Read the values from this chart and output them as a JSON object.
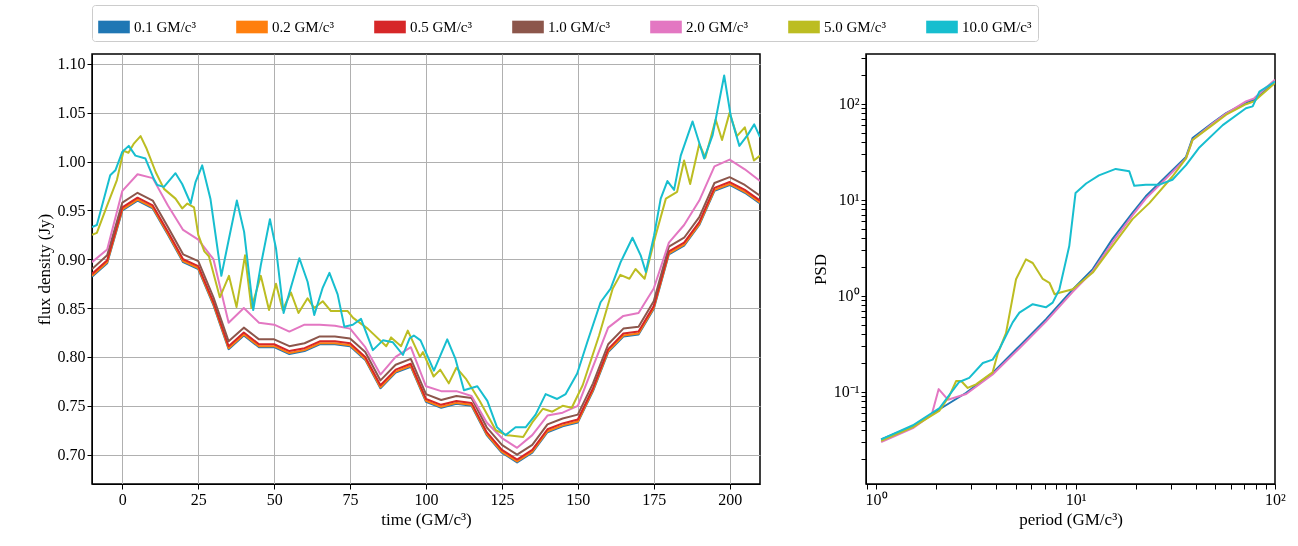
{
  "chart_data": [
    {
      "type": "line",
      "xlabel": "time (GM/c³)",
      "ylabel": "flux density (Jy)",
      "legend": "top",
      "grid": true,
      "xlim": [
        -10,
        210
      ],
      "xticks": [
        0,
        25,
        50,
        75,
        100,
        125,
        150,
        175,
        200
      ],
      "ylim": [
        0.67,
        1.11
      ],
      "yticks": [
        {
          "value": 0.7,
          "label": "0.70"
        },
        0.75,
        {
          "value": 0.8,
          "label": "0.80"
        },
        0.85,
        {
          "value": 0.9,
          "label": "0.90"
        },
        0.95,
        {
          "value": 1.0,
          "label": "1.00"
        },
        1.05,
        {
          "value": 1.1,
          "label": "1.10"
        }
      ],
      "x": [
        -10,
        -5,
        0,
        5,
        10,
        15,
        20,
        25,
        30,
        35,
        40,
        45,
        50,
        55,
        60,
        65,
        70,
        75,
        80,
        85,
        90,
        95,
        100,
        105,
        110,
        115,
        120,
        125,
        130,
        135,
        140,
        145,
        150,
        155,
        160,
        165,
        170,
        175,
        180,
        185,
        190,
        195,
        200,
        205,
        210
      ],
      "series": [
        {
          "name": "0.1 GM/c³",
          "color": "#1f77b4",
          "values": [
            0.882,
            0.896,
            0.95,
            0.96,
            0.952,
            0.925,
            0.897,
            0.89,
            0.853,
            0.808,
            0.822,
            0.81,
            0.81,
            0.803,
            0.806,
            0.813,
            0.813,
            0.811,
            0.797,
            0.768,
            0.784,
            0.79,
            0.754,
            0.748,
            0.752,
            0.75,
            0.72,
            0.702,
            0.692,
            0.702,
            0.723,
            0.729,
            0.733,
            0.765,
            0.805,
            0.821,
            0.823,
            0.849,
            0.905,
            0.914,
            0.935,
            0.97,
            0.976,
            0.968,
            0.957
          ]
        },
        {
          "name": "0.2 GM/c³",
          "color": "#ff7f0e",
          "values": [
            0.883,
            0.897,
            0.951,
            0.961,
            0.953,
            0.926,
            0.898,
            0.891,
            0.854,
            0.809,
            0.823,
            0.811,
            0.811,
            0.804,
            0.807,
            0.814,
            0.814,
            0.812,
            0.798,
            0.769,
            0.785,
            0.791,
            0.755,
            0.749,
            0.753,
            0.751,
            0.721,
            0.703,
            0.693,
            0.703,
            0.724,
            0.73,
            0.734,
            0.766,
            0.806,
            0.822,
            0.824,
            0.85,
            0.906,
            0.915,
            0.936,
            0.971,
            0.977,
            0.969,
            0.958
          ]
        },
        {
          "name": "0.5 GM/c³",
          "color": "#d62728",
          "values": [
            0.885,
            0.899,
            0.953,
            0.963,
            0.955,
            0.928,
            0.9,
            0.893,
            0.856,
            0.811,
            0.825,
            0.813,
            0.813,
            0.806,
            0.809,
            0.816,
            0.816,
            0.814,
            0.8,
            0.771,
            0.787,
            0.793,
            0.757,
            0.751,
            0.755,
            0.753,
            0.723,
            0.705,
            0.695,
            0.705,
            0.726,
            0.732,
            0.736,
            0.768,
            0.808,
            0.824,
            0.826,
            0.852,
            0.908,
            0.917,
            0.938,
            0.973,
            0.979,
            0.971,
            0.96
          ]
        },
        {
          "name": "1.0 GM/c³",
          "color": "#8c564b",
          "values": [
            0.89,
            0.904,
            0.958,
            0.968,
            0.96,
            0.933,
            0.905,
            0.898,
            0.861,
            0.816,
            0.83,
            0.818,
            0.818,
            0.811,
            0.814,
            0.821,
            0.821,
            0.819,
            0.805,
            0.776,
            0.792,
            0.798,
            0.762,
            0.756,
            0.76,
            0.758,
            0.728,
            0.71,
            0.7,
            0.71,
            0.731,
            0.737,
            0.741,
            0.773,
            0.813,
            0.829,
            0.831,
            0.857,
            0.913,
            0.922,
            0.943,
            0.978,
            0.984,
            0.976,
            0.965
          ]
        },
        {
          "name": "2.0 GM/c³",
          "color": "#e377c2",
          "values": [
            0.897,
            0.91,
            0.97,
            0.987,
            0.983,
            0.955,
            0.93,
            0.92,
            0.9,
            0.835,
            0.85,
            0.835,
            0.833,
            0.826,
            0.833,
            0.833,
            0.832,
            0.829,
            0.81,
            0.782,
            0.8,
            0.81,
            0.77,
            0.765,
            0.765,
            0.76,
            0.733,
            0.717,
            0.707,
            0.72,
            0.74,
            0.743,
            0.75,
            0.79,
            0.83,
            0.842,
            0.845,
            0.87,
            0.917,
            0.935,
            0.96,
            0.995,
            1.002,
            0.992,
            0.98
          ]
        },
        {
          "name": "5.0 GM/c³",
          "color": "#bcbd22",
          "x": [
            -10,
            -8.4,
            -5,
            -1.8,
            0.4,
            2,
            3.7,
            6,
            8,
            11,
            13.7,
            17.5,
            19.7,
            21.4,
            23.6,
            25,
            27,
            28.5,
            32.1,
            35.1,
            37.6,
            40.4,
            42.5,
            45.6,
            48.3,
            50.6,
            52.8,
            55.5,
            58,
            61,
            63.2,
            66,
            68.7,
            74.2,
            76,
            80.8,
            86.9,
            88.5,
            91.8,
            94,
            98,
            99,
            102.5,
            104.7,
            107.5,
            110,
            113.3,
            117.7,
            123,
            126.5,
            132,
            135,
            138.5,
            141.6,
            145,
            148,
            151.6,
            157,
            161.5,
            164,
            167,
            169,
            172,
            175.6,
            179,
            182.7,
            185,
            187,
            190,
            192,
            195.4,
            197.5,
            200,
            202.4,
            205,
            208,
            210
          ],
          "values": [
            0.925,
            0.927,
            0.955,
            0.981,
            1.011,
            1.009,
            1.018,
            1.026,
            1.013,
            0.989,
            0.972,
            0.962,
            0.952,
            0.957,
            0.953,
            0.925,
            0.908,
            0.903,
            0.861,
            0.883,
            0.851,
            0.904,
            0.85,
            0.883,
            0.848,
            0.875,
            0.848,
            0.866,
            0.845,
            0.86,
            0.85,
            0.857,
            0.847,
            0.847,
            0.84,
            0.829,
            0.811,
            0.82,
            0.811,
            0.827,
            0.8,
            0.805,
            0.78,
            0.787,
            0.773,
            0.789,
            0.777,
            0.755,
            0.725,
            0.72,
            0.718,
            0.733,
            0.747,
            0.744,
            0.75,
            0.748,
            0.771,
            0.822,
            0.87,
            0.884,
            0.88,
            0.89,
            0.88,
            0.924,
            0.962,
            0.969,
            1.001,
            0.977,
            1.018,
            1.004,
            1.043,
            1.022,
            1.05,
            1.026,
            1.035,
            1.001,
            1.006
          ]
        },
        {
          "name": "10.0 GM/c³",
          "color": "#17becf",
          "x": [
            -10,
            -8.4,
            -4,
            -2.3,
            0,
            2.1,
            4.3,
            7.6,
            10.4,
            11.5,
            13.7,
            17.5,
            19.7,
            22.5,
            24.1,
            26.3,
            29,
            32.6,
            35.1,
            37.7,
            40.1,
            43.1,
            45.6,
            48.6,
            50.6,
            53.1,
            55.5,
            58.3,
            61,
            63.2,
            66,
            68.2,
            70.9,
            73.1,
            75.9,
            78.6,
            82.5,
            85.8,
            89.1,
            92.4,
            94.6,
            96,
            98.2,
            102.6,
            107,
            109.7,
            112.5,
            116.9,
            120.2,
            123.4,
            126.2,
            129.5,
            132.8,
            136.1,
            139.4,
            143.2,
            146,
            149.8,
            153.1,
            157.5,
            160.8,
            164.1,
            168,
            170.7,
            172.4,
            175.1,
            177.3,
            179.5,
            181.7,
            183.9,
            187.8,
            191.6,
            194.4,
            198.2,
            200.4,
            203.2,
            205.9,
            208.1,
            210
          ],
          "values": [
            0.933,
            0.935,
            0.986,
            0.991,
            1.01,
            1.016,
            1.006,
            1.003,
            0.982,
            0.976,
            0.974,
            0.988,
            0.977,
            0.957,
            0.979,
            0.996,
            0.962,
            0.883,
            0.921,
            0.96,
            0.928,
            0.848,
            0.894,
            0.941,
            0.911,
            0.845,
            0.871,
            0.901,
            0.877,
            0.843,
            0.871,
            0.886,
            0.864,
            0.831,
            0.833,
            0.839,
            0.807,
            0.817,
            0.815,
            0.802,
            0.819,
            0.822,
            0.817,
            0.786,
            0.818,
            0.798,
            0.766,
            0.77,
            0.755,
            0.728,
            0.72,
            0.728,
            0.728,
            0.741,
            0.762,
            0.757,
            0.762,
            0.783,
            0.815,
            0.856,
            0.87,
            0.897,
            0.922,
            0.904,
            0.887,
            0.924,
            0.962,
            0.98,
            0.971,
            1.006,
            1.041,
            1.003,
            1.027,
            1.088,
            1.046,
            1.016,
            1.027,
            1.038,
            1.025
          ]
        }
      ]
    },
    {
      "type": "line",
      "xlabel": "period (GM/c³)",
      "ylabel": "PSD",
      "log": "xy",
      "xlim": [
        0.89,
        100
      ],
      "xticks": [
        {
          "value": 0.9,
          "label": null
        },
        {
          "value": 1,
          "label": "10⁰"
        },
        {
          "value": 2,
          "label": null
        },
        {
          "value": 3,
          "label": null
        },
        {
          "value": 4,
          "label": null
        },
        {
          "value": 5,
          "label": null
        },
        {
          "value": 6,
          "label": null
        },
        {
          "value": 7,
          "label": null
        },
        {
          "value": 8,
          "label": null
        },
        {
          "value": 9,
          "label": null
        },
        {
          "value": 10,
          "label": "10¹"
        },
        {
          "value": 20,
          "label": null
        },
        {
          "value": 30,
          "label": null
        },
        {
          "value": 40,
          "label": null
        },
        {
          "value": 50,
          "label": null
        },
        {
          "value": 60,
          "label": null
        },
        {
          "value": 70,
          "label": null
        },
        {
          "value": 80,
          "label": null
        },
        {
          "value": 90,
          "label": null
        },
        {
          "value": 100,
          "label": "10²"
        }
      ],
      "ylim": [
        0.011,
        330
      ],
      "yticks": [
        {
          "value": 0.02,
          "label": null
        },
        {
          "value": 0.03,
          "label": null
        },
        {
          "value": 0.04,
          "label": null
        },
        {
          "value": 0.05,
          "label": null
        },
        {
          "value": 0.06,
          "label": null
        },
        {
          "value": 0.07,
          "label": null
        },
        {
          "value": 0.08,
          "label": null
        },
        {
          "value": 0.09,
          "label": null
        },
        {
          "value": 0.1,
          "label": "10⁻¹"
        },
        {
          "value": 0.2,
          "label": null
        },
        {
          "value": 0.3,
          "label": null
        },
        {
          "value": 0.4,
          "label": null
        },
        {
          "value": 0.5,
          "label": null
        },
        {
          "value": 0.6,
          "label": null
        },
        {
          "value": 0.7,
          "label": null
        },
        {
          "value": 0.8,
          "label": null
        },
        {
          "value": 0.9,
          "label": null
        },
        {
          "value": 1,
          "label": "10⁰"
        },
        {
          "value": 2,
          "label": null
        },
        {
          "value": 3,
          "label": null
        },
        {
          "value": 4,
          "label": null
        },
        {
          "value": 5,
          "label": null
        },
        {
          "value": 6,
          "label": null
        },
        {
          "value": 7,
          "label": null
        },
        {
          "value": 8,
          "label": null
        },
        {
          "value": 9,
          "label": null
        },
        {
          "value": 10,
          "label": "10¹"
        },
        {
          "value": 20,
          "label": null
        },
        {
          "value": 30,
          "label": null
        },
        {
          "value": 40,
          "label": null
        },
        {
          "value": 50,
          "label": null
        },
        {
          "value": 60,
          "label": null
        },
        {
          "value": 70,
          "label": null
        },
        {
          "value": 80,
          "label": null
        },
        {
          "value": 90,
          "label": null
        },
        {
          "value": 100,
          "label": "10²"
        },
        {
          "value": 200,
          "label": null
        },
        {
          "value": 300,
          "label": null
        }
      ],
      "x": [
        1.06,
        1.53,
        2.08,
        2.83,
        3.84,
        5.23,
        7.1,
        9.68,
        12.2,
        15.3,
        19.3,
        22.5,
        28.5,
        35.8,
        38.6,
        48.5,
        56.9,
        71.5,
        78.6,
        100
      ],
      "series": [
        {
          "name": "0.1 GM/c³",
          "color": "#1f77b4",
          "values": [
            0.032,
            0.044,
            0.066,
            0.098,
            0.158,
            0.3,
            0.57,
            1.17,
            1.9,
            3.9,
            7.3,
            10.9,
            17.6,
            28,
            44,
            63,
            80,
            103,
            110,
            170
          ]
        },
        {
          "name": "0.2 GM/c³",
          "color": "#ff7f0e",
          "values": [
            null,
            null,
            null,
            null,
            null,
            null,
            null,
            null,
            null,
            null,
            null,
            null,
            null,
            null,
            null,
            null,
            null,
            null,
            null,
            null
          ]
        },
        {
          "name": "0.5 GM/c³",
          "color": "#d62728",
          "values": [
            null,
            null,
            null,
            null,
            null,
            null,
            null,
            null,
            null,
            null,
            null,
            null,
            null,
            null,
            null,
            null,
            null,
            null,
            null,
            null
          ]
        },
        {
          "name": "1.0 GM/c³",
          "color": "#8c564b",
          "values": [
            null,
            null,
            null,
            null,
            null,
            null,
            null,
            null,
            null,
            null,
            null,
            null,
            null,
            null,
            null,
            null,
            null,
            null,
            null,
            null
          ]
        },
        {
          "name": "2.0 GM/c³",
          "color": "#e377c2",
          "x": [
            1.06,
            1.53,
            1.9,
            2.06,
            2.29,
            2.83,
            3.84,
            5.23,
            7.1,
            9.68,
            12.2,
            15.3,
            19.3,
            22.5,
            28.5,
            35.8,
            38.6,
            48.5,
            56.9,
            71.5,
            78.6,
            100
          ],
          "values": [
            0.03,
            0.042,
            0.058,
            0.107,
            0.083,
            0.095,
            0.152,
            0.285,
            0.54,
            1.1,
            1.8,
            3.6,
            6.9,
            10.3,
            16.8,
            27,
            42,
            62,
            79,
            106,
            114,
            178
          ]
        },
        {
          "name": "5.0 GM/c³",
          "color": "#bcbd22",
          "x": [
            1.06,
            1.53,
            2.08,
            2.33,
            2.52,
            2.67,
            2.88,
            3.17,
            3.84,
            4.07,
            4.48,
            5.03,
            5.64,
            6.1,
            6.85,
            7.4,
            7.85,
            8.3,
            9.68,
            12.2,
            15.3,
            19.3,
            23.5,
            30.6,
            35.8,
            38.6,
            48.5,
            56.9,
            71.5,
            78.6,
            100
          ],
          "values": [
            0.031,
            0.043,
            0.064,
            0.091,
            0.13,
            0.13,
            0.11,
            0.12,
            0.16,
            0.25,
            0.41,
            1.49,
            2.4,
            2.2,
            1.5,
            1.37,
            1.04,
            1.08,
            1.17,
            1.75,
            3.3,
            6.3,
            9.3,
            17.5,
            27,
            42,
            60,
            77,
            99,
            106,
            165
          ]
        },
        {
          "name": "10.0 GM/c³",
          "color": "#17becf",
          "x": [
            1.06,
            1.53,
            2.08,
            2.61,
            2.93,
            3.43,
            3.84,
            4.15,
            4.84,
            5.23,
            6.1,
            7.1,
            7.68,
            8.3,
            9.3,
            10,
            11.3,
            13.1,
            15.9,
            18.6,
            19.7,
            22.5,
            26.3,
            30.6,
            35.8,
            41.5,
            54.7,
            71.5,
            77.3,
            83.5,
            100
          ],
          "values": [
            0.032,
            0.045,
            0.068,
            0.127,
            0.14,
            0.2,
            0.217,
            0.28,
            0.53,
            0.67,
            0.82,
            0.76,
            0.85,
            1.17,
            3.3,
            11.8,
            14.8,
            18,
            21,
            19.8,
            14,
            14.4,
            14.4,
            16.2,
            23,
            34.6,
            60,
            90,
            94,
            134,
            170
          ]
        }
      ]
    }
  ]
}
